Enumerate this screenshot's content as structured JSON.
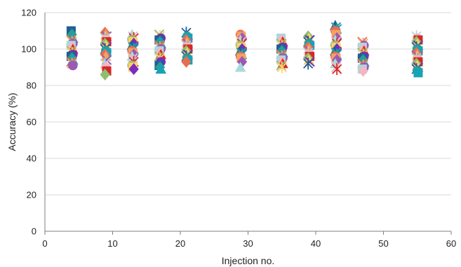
{
  "chart_data": {
    "type": "scatter",
    "title": "",
    "xlabel": "Injection no.",
    "ylabel": "Accuracy (%)",
    "xlim": [
      0,
      60
    ],
    "ylim": [
      0,
      120
    ],
    "x_ticks": [
      "0",
      "10",
      "20",
      "30",
      "40",
      "50",
      "60"
    ],
    "y_ticks": [
      "0",
      "20",
      "40",
      "60",
      "80",
      "100",
      "120"
    ],
    "grid": "horizontal",
    "legend": "none",
    "palette": [
      "#1f5f99",
      "#2a9d8f",
      "#17a2b8",
      "#e76f51",
      "#f4a261",
      "#9b59b6",
      "#a8dadc",
      "#f4b6c2",
      "#d62828",
      "#90be6d",
      "#ffd166",
      "#7b2cbf"
    ],
    "series": [
      {
        "x": 4,
        "values": [
          110,
          108,
          106,
          105,
          104,
          103,
          102,
          101,
          100,
          99,
          98,
          97,
          96,
          95,
          94,
          93,
          92,
          91
        ]
      },
      {
        "x": 9,
        "values": [
          109,
          108,
          107,
          106,
          105,
          104,
          103,
          102,
          101,
          100,
          99,
          98,
          97,
          96,
          94,
          92,
          90,
          88,
          86
        ]
      },
      {
        "x": 13,
        "values": [
          108,
          107,
          106,
          105,
          104,
          103,
          102,
          101,
          100,
          99,
          98,
          97,
          96,
          95,
          93,
          91,
          90,
          89
        ]
      },
      {
        "x": 17,
        "values": [
          108,
          107,
          106,
          105,
          104,
          103,
          102,
          101,
          100,
          99,
          98,
          97,
          96,
          95,
          93,
          91,
          90,
          89
        ]
      },
      {
        "x": 21,
        "values": [
          109,
          107,
          106,
          105,
          104,
          103,
          102,
          101,
          100,
          99,
          98,
          97,
          96,
          95,
          94,
          93
        ]
      },
      {
        "x": 29,
        "values": [
          108,
          107,
          106,
          105,
          104,
          103,
          102,
          101,
          100,
          99,
          98,
          97,
          96,
          95,
          93,
          90
        ]
      },
      {
        "x": 35,
        "values": [
          106,
          105,
          104,
          103,
          102,
          101,
          100,
          99,
          98,
          97,
          96,
          95,
          94,
          93,
          92,
          91,
          90
        ]
      },
      {
        "x": 39,
        "values": [
          107,
          106,
          105,
          104,
          103,
          102,
          101,
          100,
          99,
          98,
          97,
          96,
          95,
          94,
          93,
          92
        ]
      },
      {
        "x": 43,
        "values": [
          113,
          112,
          111,
          110,
          108,
          106,
          105,
          104,
          103,
          102,
          101,
          100,
          99,
          98,
          97,
          96,
          95,
          94,
          92,
          90,
          89
        ]
      },
      {
        "x": 47,
        "values": [
          104,
          103,
          102,
          101,
          100,
          99,
          98,
          97,
          96,
          95,
          94,
          93,
          92,
          91,
          90,
          89,
          88
        ]
      },
      {
        "x": 55,
        "values": [
          107,
          106,
          105,
          104,
          103,
          102,
          101,
          100,
          99,
          98,
          97,
          96,
          95,
          94,
          93,
          92,
          91,
          90,
          89,
          88,
          87
        ]
      }
    ]
  }
}
